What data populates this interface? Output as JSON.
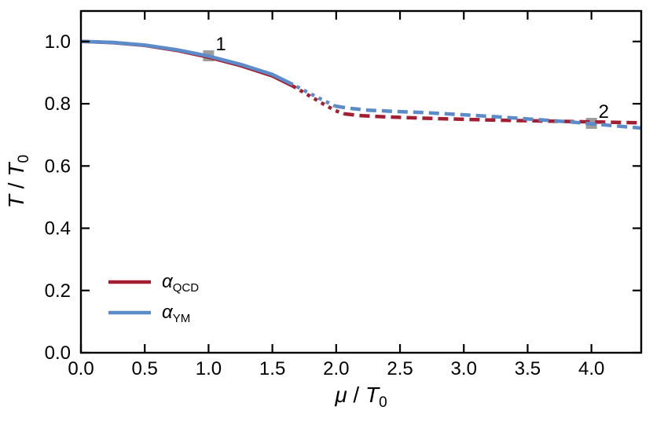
{
  "chart_data": {
    "type": "line",
    "title": "",
    "xlabel": {
      "numerator": "μ",
      "slash": " / ",
      "denominator": "T",
      "denominator_sub": "0"
    },
    "ylabel": {
      "numerator": "T",
      "slash": " / ",
      "denominator": "T",
      "denominator_sub": "0"
    },
    "xlim": [
      0,
      4.39
    ],
    "ylim": [
      0,
      1.098
    ],
    "grid": false,
    "tick_style": "inward-all-four-sides",
    "xticks": {
      "values": [
        0,
        0.5,
        1.0,
        1.5,
        2.0,
        2.5,
        3.0,
        3.5,
        4.0
      ],
      "labels": [
        "0.0",
        "0.5",
        "1.0",
        "1.5",
        "2.0",
        "2.5",
        "3.0",
        "3.5",
        "4.0"
      ]
    },
    "yticks": {
      "values": [
        0,
        0.2,
        0.4,
        0.6,
        0.8,
        1.0
      ],
      "labels": [
        "0.0",
        "0.2",
        "0.4",
        "0.6",
        "0.8",
        "1.0"
      ]
    },
    "series": [
      {
        "id": "alpha-qcd",
        "name_base": "α",
        "name_sub": "QCD",
        "color": "#A41E32",
        "segments": [
          {
            "style": "solid",
            "points": [
              [
                0.0,
                1.0
              ],
              [
                0.25,
                0.9965
              ],
              [
                0.5,
                0.9875
              ],
              [
                0.75,
                0.9715
              ],
              [
                1.0,
                0.9495
              ],
              [
                1.25,
                0.9225
              ],
              [
                1.5,
                0.8895
              ],
              [
                1.66,
                0.857
              ]
            ]
          },
          {
            "style": "dotted",
            "points": [
              [
                1.66,
                0.857
              ],
              [
                1.77,
                0.8305
              ],
              [
                1.88,
                0.804
              ],
              [
                1.99,
                0.7785
              ],
              [
                2.06,
                0.7675
              ]
            ]
          },
          {
            "style": "dashed",
            "points": [
              [
                2.06,
                0.7675
              ],
              [
                2.2,
                0.7615
              ],
              [
                2.4,
                0.7575
              ],
              [
                2.7,
                0.7535
              ],
              [
                3.0,
                0.75
              ],
              [
                3.3,
                0.747
              ],
              [
                3.6,
                0.7445
              ],
              [
                3.9,
                0.7425
              ],
              [
                4.15,
                0.7405
              ],
              [
                4.39,
                0.7385
              ]
            ]
          }
        ]
      },
      {
        "id": "alpha-ym",
        "name_base": "α",
        "name_sub": "YM",
        "color": "#5C8BC9",
        "segments": [
          {
            "style": "solid",
            "points": [
              [
                0.0,
                1.0
              ],
              [
                0.25,
                0.997
              ],
              [
                0.5,
                0.9885
              ],
              [
                0.75,
                0.9735
              ],
              [
                1.0,
                0.953
              ],
              [
                1.25,
                0.9265
              ],
              [
                1.5,
                0.894
              ],
              [
                1.66,
                0.862
              ]
            ]
          },
          {
            "style": "dotted",
            "points": [
              [
                1.66,
                0.862
              ],
              [
                1.77,
                0.838
              ],
              [
                1.88,
                0.815
              ],
              [
                1.99,
                0.7925
              ]
            ]
          },
          {
            "style": "dashed",
            "points": [
              [
                1.99,
                0.7925
              ],
              [
                2.1,
                0.7855
              ],
              [
                2.25,
                0.7795
              ],
              [
                2.45,
                0.7755
              ],
              [
                2.7,
                0.7715
              ],
              [
                3.0,
                0.7645
              ],
              [
                3.3,
                0.757
              ],
              [
                3.6,
                0.7485
              ],
              [
                3.85,
                0.741
              ],
              [
                4.0,
                0.7355
              ],
              [
                4.2,
                0.7285
              ],
              [
                4.39,
                0.722
              ]
            ]
          }
        ]
      }
    ],
    "markers": [
      {
        "label": "1",
        "x": 1.0,
        "y": 0.954
      },
      {
        "label": "2",
        "x": 4.0,
        "y": 0.737
      }
    ],
    "legend": {
      "position": "lower-left",
      "entries": [
        {
          "series_id": "alpha-qcd",
          "base": "α",
          "sub": "QCD",
          "color": "#A41E32"
        },
        {
          "series_id": "alpha-ym",
          "base": "α",
          "sub": "YM",
          "color": "#5C8BC9"
        }
      ]
    },
    "colors": {
      "axis": "#000000",
      "text": "#000000",
      "marker_fill": "#9D9D9D",
      "marker_label": "#8E8E8E",
      "background": "#FFFFFF"
    }
  }
}
